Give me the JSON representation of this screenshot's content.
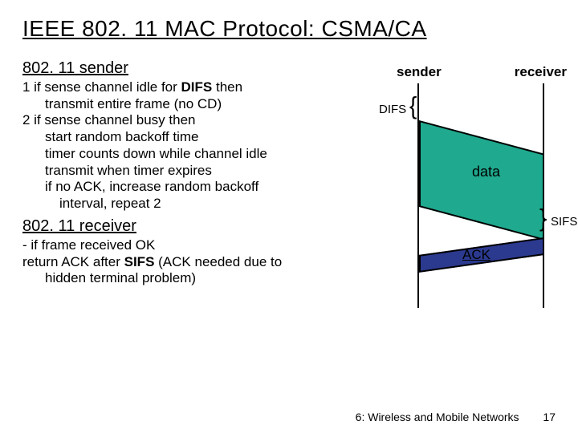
{
  "title": "IEEE 802. 11 MAC Protocol: CSMA/CA",
  "sender_head": "802. 11 sender",
  "line1_pre": "1 if sense channel idle for ",
  "line1_bold": "DIFS",
  "line1_post": "  then",
  "line1a": "transmit entire frame (no CD)",
  "line2": "2 if sense channel busy then",
  "line2a": "start random backoff time",
  "line2b": "timer counts down while channel idle",
  "line2c": "transmit when timer expires",
  "line2d": "if no ACK, increase random backoff",
  "line2e": "interval, repeat 2",
  "recv_head": "802. 11 receiver",
  "recv1": "- if frame received OK",
  "recv2_pre": "  return ACK after ",
  "recv2_bold": "SIFS",
  "recv2_post": " (ACK needed due to",
  "recv3": "hidden terminal problem)",
  "diag": {
    "sender": "sender",
    "receiver": "receiver",
    "difs": "DIFS",
    "sifs": "SIFS",
    "data": "data",
    "ack": "ACK",
    "data_fill": "#1fa98e",
    "ack_fill": "#2b3a8f"
  },
  "footer_text": "6: Wireless and Mobile Networks",
  "page": "17"
}
